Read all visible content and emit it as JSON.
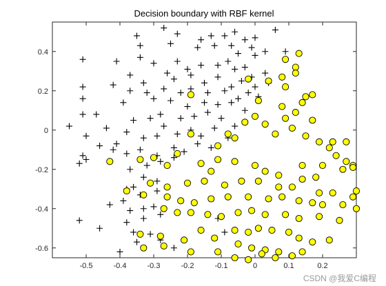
{
  "chart_data": {
    "type": "scatter",
    "title": "Decision boundary with RBF kernel",
    "xlabel": "",
    "ylabel": "",
    "xlim": [
      -0.6,
      0.3
    ],
    "ylim": [
      -0.65,
      0.55
    ],
    "x_ticks": [
      -0.5,
      -0.4,
      -0.3,
      -0.2,
      -0.1,
      0,
      0.1,
      0.2
    ],
    "x_tick_labels": [
      "-0.5",
      "-0.4",
      "-0.3",
      "-0.2",
      "-0.1",
      "0",
      "0.1",
      "0.2"
    ],
    "y_ticks": [
      -0.6,
      -0.4,
      -0.2,
      0,
      0.2,
      0.4
    ],
    "y_tick_labels": [
      "-0.6",
      "-0.4",
      "-0.2",
      "0",
      "0.2",
      "0.4"
    ],
    "grid": false,
    "legend": "none",
    "series": [
      {
        "marker": "plus",
        "color": "#000000",
        "points": [
          [
            -0.27,
            0.52
          ],
          [
            -0.23,
            0.49
          ],
          [
            -0.16,
            0.46
          ],
          [
            -0.13,
            0.48
          ],
          [
            -0.09,
            0.48
          ],
          [
            -0.06,
            0.5
          ],
          [
            -0.03,
            0.46
          ],
          [
            0.0,
            0.47
          ],
          [
            0.06,
            0.51
          ],
          [
            -0.35,
            0.48
          ],
          [
            -0.34,
            0.43
          ],
          [
            -0.25,
            0.44
          ],
          [
            -0.17,
            0.42
          ],
          [
            -0.12,
            0.43
          ],
          [
            -0.07,
            0.43
          ],
          [
            -0.05,
            0.39
          ],
          [
            -0.01,
            0.42
          ],
          [
            0.0,
            0.38
          ],
          [
            0.03,
            0.4
          ],
          [
            0.09,
            0.4
          ],
          [
            -0.51,
            0.36
          ],
          [
            -0.41,
            0.35
          ],
          [
            -0.34,
            0.37
          ],
          [
            -0.3,
            0.34
          ],
          [
            -0.23,
            0.35
          ],
          [
            -0.2,
            0.31
          ],
          [
            -0.16,
            0.33
          ],
          [
            -0.11,
            0.33
          ],
          [
            -0.08,
            0.35
          ],
          [
            -0.06,
            0.31
          ],
          [
            -0.03,
            0.32
          ],
          [
            -0.01,
            0.27
          ],
          [
            0.03,
            0.29
          ],
          [
            -0.37,
            0.28
          ],
          [
            -0.33,
            0.24
          ],
          [
            -0.26,
            0.29
          ],
          [
            -0.24,
            0.26
          ],
          [
            -0.19,
            0.28
          ],
          [
            -0.15,
            0.24
          ],
          [
            -0.11,
            0.27
          ],
          [
            -0.07,
            0.22
          ],
          [
            -0.04,
            0.25
          ],
          [
            0.0,
            0.22
          ],
          [
            0.04,
            0.24
          ],
          [
            -0.51,
            0.22
          ],
          [
            -0.42,
            0.23
          ],
          [
            -0.37,
            0.2
          ],
          [
            -0.32,
            0.19
          ],
          [
            -0.27,
            0.21
          ],
          [
            -0.22,
            0.19
          ],
          [
            -0.19,
            0.21
          ],
          [
            -0.14,
            0.19
          ],
          [
            -0.09,
            0.2
          ],
          [
            -0.05,
            0.16
          ],
          [
            -0.02,
            0.19
          ],
          [
            0.01,
            0.17
          ],
          [
            -0.51,
            0.16
          ],
          [
            -0.39,
            0.14
          ],
          [
            -0.3,
            0.16
          ],
          [
            -0.25,
            0.15
          ],
          [
            -0.2,
            0.12
          ],
          [
            -0.15,
            0.14
          ],
          [
            -0.11,
            0.13
          ],
          [
            -0.07,
            0.14
          ],
          [
            -0.03,
            0.1
          ],
          [
            -0.51,
            0.08
          ],
          [
            -0.47,
            0.08
          ],
          [
            -0.44,
            0.01
          ],
          [
            -0.36,
            0.05
          ],
          [
            -0.31,
            0.06
          ],
          [
            -0.28,
            0.08
          ],
          [
            -0.22,
            0.06
          ],
          [
            -0.18,
            0.07
          ],
          [
            -0.14,
            0.09
          ],
          [
            -0.1,
            0.06
          ],
          [
            -0.55,
            0.02
          ],
          [
            -0.5,
            -0.03
          ],
          [
            -0.46,
            -0.08
          ],
          [
            -0.41,
            -0.07
          ],
          [
            -0.38,
            -0.01
          ],
          [
            -0.33,
            -0.04
          ],
          [
            -0.29,
            -0.03
          ],
          [
            -0.27,
            0.02
          ],
          [
            -0.23,
            -0.02
          ],
          [
            -0.19,
            0.0
          ],
          [
            -0.16,
            -0.03
          ],
          [
            -0.12,
            0.01
          ],
          [
            -0.06,
            0.02
          ],
          [
            -0.51,
            -0.13
          ],
          [
            -0.5,
            -0.15
          ],
          [
            -0.52,
            -0.17
          ],
          [
            -0.42,
            -0.1
          ],
          [
            -0.38,
            -0.12
          ],
          [
            -0.34,
            -0.1
          ],
          [
            -0.29,
            -0.13
          ],
          [
            -0.24,
            -0.09
          ],
          [
            -0.21,
            -0.11
          ],
          [
            -0.17,
            -0.07
          ],
          [
            -0.13,
            -0.09
          ],
          [
            -0.08,
            -0.04
          ],
          [
            -0.37,
            -0.2
          ],
          [
            -0.32,
            -0.18
          ],
          [
            -0.28,
            -0.16
          ],
          [
            -0.24,
            -0.14
          ],
          [
            -0.33,
            -0.24
          ],
          [
            -0.29,
            -0.26
          ],
          [
            -0.36,
            -0.29
          ],
          [
            -0.38,
            -0.3
          ],
          [
            -0.34,
            -0.33
          ],
          [
            -0.29,
            -0.31
          ],
          [
            -0.43,
            -0.38
          ],
          [
            -0.39,
            -0.36
          ],
          [
            -0.37,
            -0.41
          ],
          [
            -0.33,
            -0.4
          ],
          [
            -0.3,
            -0.39
          ],
          [
            -0.46,
            -0.5
          ],
          [
            -0.38,
            -0.47
          ],
          [
            -0.33,
            -0.45
          ],
          [
            -0.28,
            -0.43
          ],
          [
            -0.36,
            -0.52
          ],
          [
            -0.31,
            -0.53
          ],
          [
            -0.52,
            -0.46
          ],
          [
            -0.4,
            -0.62
          ],
          [
            -0.35,
            -0.57
          ],
          [
            -0.28,
            -0.56
          ],
          [
            -0.24,
            -0.6
          ],
          [
            -0.11,
            -0.45
          ],
          [
            -0.09,
            -0.52
          ]
        ]
      },
      {
        "marker": "circle",
        "color": "#ffff00",
        "points": [
          [
            0.13,
            0.39
          ],
          [
            0.09,
            0.36
          ],
          [
            0.12,
            0.32
          ],
          [
            0.12,
            0.29
          ],
          [
            0.08,
            0.27
          ],
          [
            0.04,
            0.25
          ],
          [
            -0.02,
            0.26
          ],
          [
            0.09,
            0.22
          ],
          [
            0.15,
            0.17
          ],
          [
            0.17,
            0.18
          ],
          [
            -0.19,
            0.18
          ],
          [
            0.01,
            0.15
          ],
          [
            0.08,
            0.12
          ],
          [
            0.09,
            0.06
          ],
          [
            0.14,
            0.14
          ],
          [
            0.12,
            0.09
          ],
          [
            0.17,
            0.05
          ],
          [
            0.0,
            0.07
          ],
          [
            -0.03,
            0.04
          ],
          [
            -0.08,
            -0.02
          ],
          [
            -0.11,
            -0.08
          ],
          [
            -0.19,
            -0.02
          ],
          [
            -0.23,
            -0.12
          ],
          [
            -0.11,
            -0.15
          ],
          [
            -0.06,
            -0.04
          ],
          [
            0.03,
            0.03
          ],
          [
            0.06,
            -0.02
          ],
          [
            0.11,
            0.01
          ],
          [
            0.15,
            -0.03
          ],
          [
            0.19,
            -0.06
          ],
          [
            0.23,
            -0.06
          ],
          [
            0.27,
            -0.06
          ],
          [
            0.22,
            -0.09
          ],
          [
            0.24,
            -0.13
          ],
          [
            0.27,
            -0.16
          ],
          [
            0.29,
            -0.18
          ],
          [
            -0.43,
            -0.16
          ],
          [
            -0.34,
            -0.15
          ],
          [
            -0.3,
            -0.14
          ],
          [
            -0.26,
            -0.18
          ],
          [
            -0.16,
            -0.17
          ],
          [
            -0.13,
            -0.21
          ],
          [
            -0.06,
            -0.16
          ],
          [
            0.0,
            -0.18
          ],
          [
            0.03,
            -0.21
          ],
          [
            0.07,
            -0.23
          ],
          [
            0.14,
            -0.18
          ],
          [
            0.18,
            -0.24
          ],
          [
            0.2,
            -0.18
          ],
          [
            0.26,
            -0.2
          ],
          [
            0.29,
            -0.19
          ],
          [
            -0.31,
            -0.27
          ],
          [
            -0.26,
            -0.29
          ],
          [
            -0.2,
            -0.27
          ],
          [
            -0.15,
            -0.26
          ],
          [
            -0.09,
            -0.28
          ],
          [
            -0.04,
            -0.26
          ],
          [
            0.01,
            -0.26
          ],
          [
            0.07,
            -0.29
          ],
          [
            0.11,
            -0.29
          ],
          [
            0.14,
            -0.25
          ],
          [
            0.19,
            -0.32
          ],
          [
            0.23,
            -0.32
          ],
          [
            0.3,
            -0.31
          ],
          [
            -0.38,
            -0.31
          ],
          [
            -0.33,
            -0.33
          ],
          [
            -0.26,
            -0.34
          ],
          [
            -0.22,
            -0.36
          ],
          [
            -0.18,
            -0.37
          ],
          [
            -0.13,
            -0.35
          ],
          [
            -0.08,
            -0.34
          ],
          [
            -0.02,
            -0.34
          ],
          [
            0.04,
            -0.35
          ],
          [
            0.08,
            -0.34
          ],
          [
            0.13,
            -0.36
          ],
          [
            0.17,
            -0.37
          ],
          [
            0.2,
            -0.38
          ],
          [
            0.26,
            -0.38
          ],
          [
            0.29,
            -0.34
          ],
          [
            -0.27,
            -0.4
          ],
          [
            -0.23,
            -0.42
          ],
          [
            -0.19,
            -0.42
          ],
          [
            -0.14,
            -0.43
          ],
          [
            -0.1,
            -0.44
          ],
          [
            -0.05,
            -0.42
          ],
          [
            -0.01,
            -0.41
          ],
          [
            0.03,
            -0.43
          ],
          [
            0.09,
            -0.43
          ],
          [
            0.13,
            -0.45
          ],
          [
            0.19,
            -0.44
          ],
          [
            0.25,
            -0.46
          ],
          [
            0.3,
            -0.4
          ],
          [
            -0.34,
            -0.53
          ],
          [
            -0.28,
            -0.54
          ],
          [
            -0.21,
            -0.56
          ],
          [
            -0.16,
            -0.51
          ],
          [
            -0.12,
            -0.55
          ],
          [
            -0.06,
            -0.51
          ],
          [
            -0.02,
            -0.52
          ],
          [
            0.01,
            -0.5
          ],
          [
            0.05,
            -0.51
          ],
          [
            0.1,
            -0.52
          ],
          [
            0.13,
            -0.55
          ],
          [
            0.17,
            -0.57
          ],
          [
            0.22,
            -0.56
          ],
          [
            -0.33,
            -0.6
          ],
          [
            -0.27,
            -0.59
          ],
          [
            -0.19,
            -0.62
          ],
          [
            -0.11,
            -0.62
          ],
          [
            -0.05,
            -0.58
          ],
          [
            -0.01,
            -0.6
          ],
          [
            0.03,
            -0.61
          ],
          [
            0.07,
            -0.62
          ],
          [
            0.11,
            -0.64
          ],
          [
            0.14,
            -0.62
          ],
          [
            0.02,
            -0.63
          ],
          [
            -0.06,
            -0.65
          ],
          [
            -0.02,
            -0.66
          ],
          [
            0.06,
            -0.65
          ]
        ]
      }
    ]
  },
  "watermark": "CSDN @我爱C编程"
}
